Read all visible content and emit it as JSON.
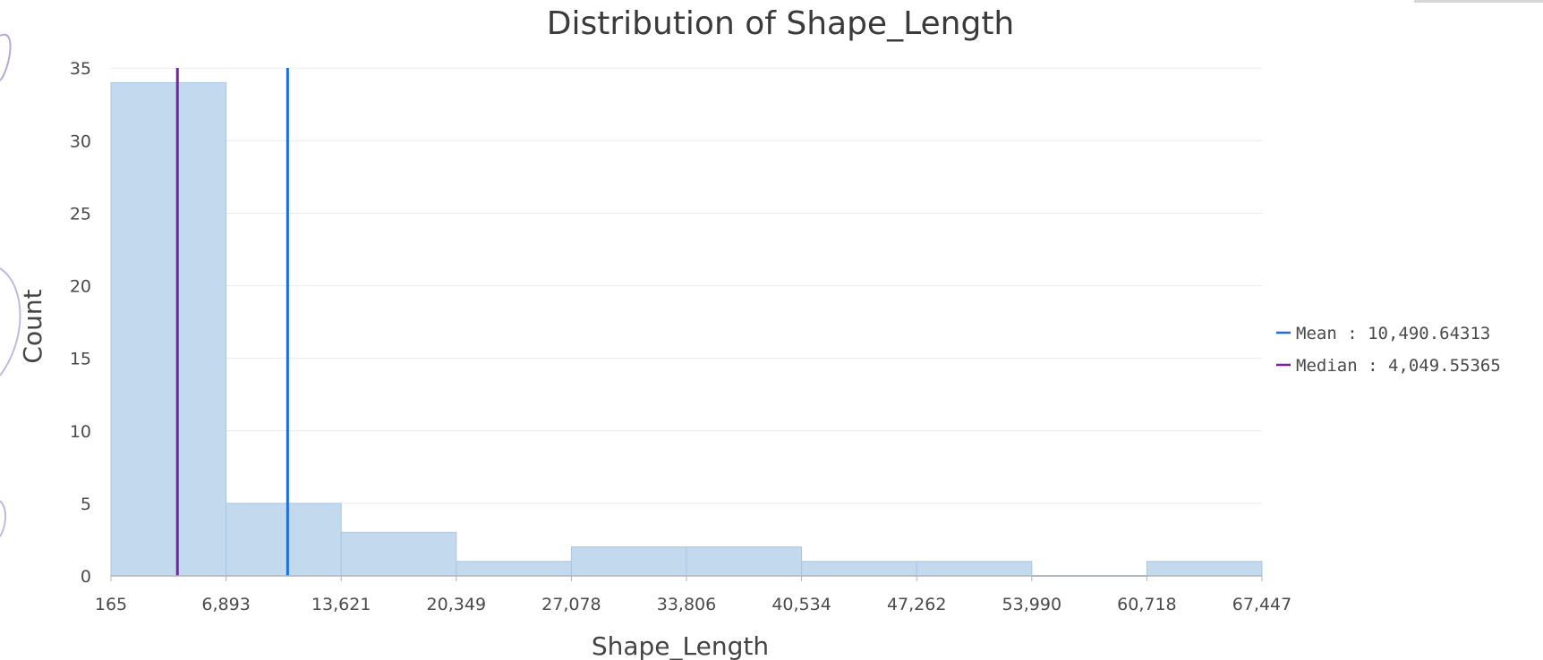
{
  "chart_data": {
    "type": "bar",
    "title": "Distribution of Shape_Length",
    "xlabel": "Shape_Length",
    "ylabel": "Count",
    "x_tick_labels": [
      "165",
      "6,893",
      "13,621",
      "20,349",
      "27,078",
      "33,806",
      "40,534",
      "47,262",
      "53,990",
      "60,718",
      "67,447"
    ],
    "bin_edges": [
      165,
      6893,
      13621,
      20349,
      27078,
      33806,
      40534,
      47262,
      53990,
      60718,
      67447
    ],
    "values": [
      34,
      5,
      3,
      1,
      2,
      2,
      1,
      1,
      0,
      1
    ],
    "y_ticks": [
      0,
      5,
      10,
      15,
      20,
      25,
      30,
      35
    ],
    "ylim": [
      0,
      36
    ],
    "grid": true,
    "bar_color": "#c3d9ee",
    "reference_lines": [
      {
        "label": "Mean : 10,490.64313",
        "value": 10490.64313,
        "color": "#1a6fe0"
      },
      {
        "label": "Median : 4,049.55365",
        "value": 4049.55365,
        "color": "#7a1fa8"
      }
    ],
    "legend_position": "right"
  }
}
